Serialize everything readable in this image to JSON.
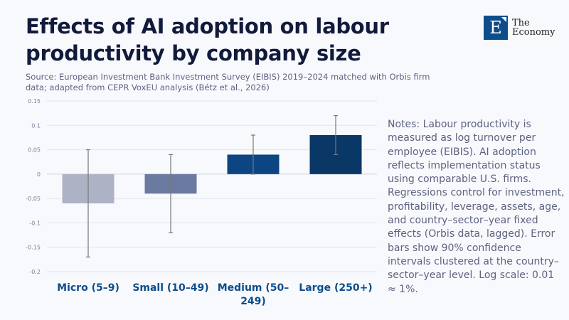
{
  "header": {
    "title": "Effects of AI adoption on labour productivity by company size",
    "source": "Source: European Investment Bank Investment Survey (EIBIS) 2019–2024 matched with Orbis firm data; adapted from CEPR VoxEU analysis (Bétz et al., 2026)"
  },
  "logo": {
    "letter": "E",
    "line1": "The",
    "line2": "Economy"
  },
  "notes": "Notes: Labour productivity is measured as log turnover per employee (EIBIS). AI adoption reflects implementation status using comparable U.S. firms. Regressions control for investment, profitability, leverage, assets, age, and country–sector–year fixed effects (Orbis data, lagged). Error bars show 90% confidence intervals clustered at the country–sector–year level. Log scale: 0.01 ≈ 1%.",
  "chart_data": {
    "type": "bar",
    "title": "Effects of AI adoption on labour productivity by company size",
    "xlabel": "",
    "ylabel": "",
    "ylim": [
      -0.2,
      0.15
    ],
    "yticks": [
      0.15,
      0.1,
      0.05,
      0,
      -0.05,
      -0.1,
      -0.15,
      -0.2
    ],
    "ytick_labels": [
      "0.15",
      "0.1",
      "0.05",
      "0",
      "-0.05",
      "-0.1",
      "-0.15",
      "-0.2"
    ],
    "categories": [
      [
        "Micro (5–9)"
      ],
      [
        "Small (10–49)"
      ],
      [
        "Medium (50–",
        "249)"
      ],
      [
        "Large (250+)"
      ]
    ],
    "values": [
      -0.06,
      -0.04,
      0.04,
      0.08
    ],
    "ci_low": [
      -0.17,
      -0.12,
      0.0,
      0.04
    ],
    "ci_high": [
      0.05,
      0.04,
      0.08,
      0.12
    ],
    "colors": [
      "#adb3c5",
      "#6a7aa0",
      "#0d4582",
      "#093766"
    ],
    "grid": true
  }
}
